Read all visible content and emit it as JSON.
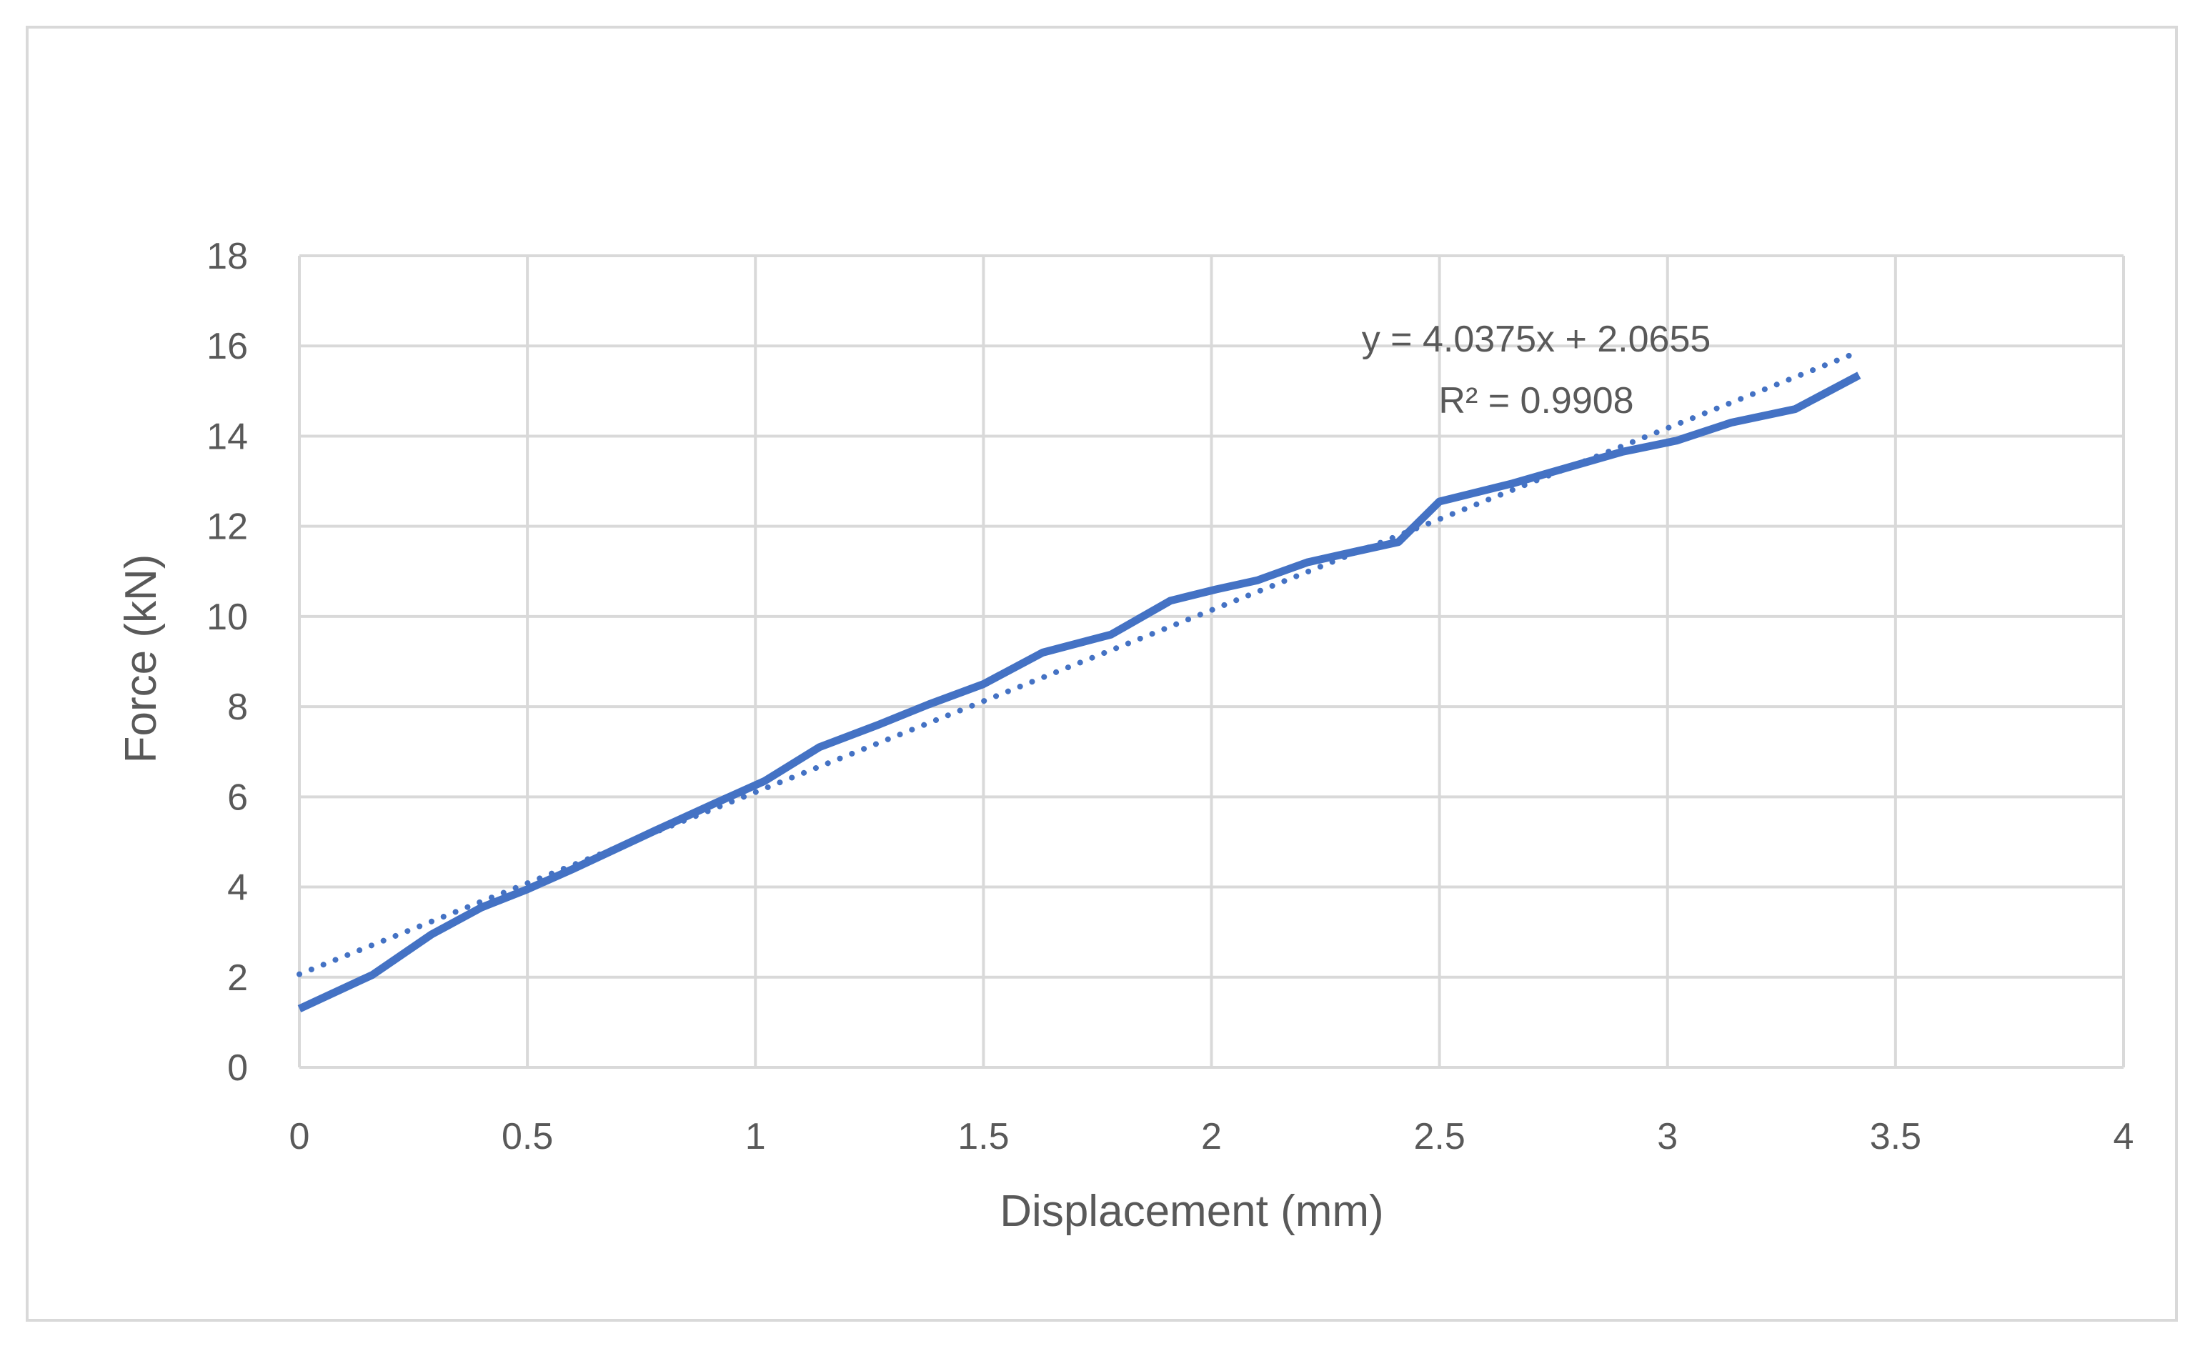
{
  "chart_data": {
    "type": "line",
    "title": "",
    "xlabel": "Displacement (mm)",
    "ylabel": "Force (kN)",
    "xlim": [
      0,
      4
    ],
    "ylim": [
      0,
      18
    ],
    "xticks": [
      0,
      0.5,
      1,
      1.5,
      2,
      2.5,
      3,
      3.5,
      4
    ],
    "xtick_labels": [
      "0",
      "0.5",
      "1",
      "1.5",
      "2",
      "2.5",
      "3",
      "3.5",
      "4"
    ],
    "yticks": [
      0,
      2,
      4,
      6,
      8,
      10,
      12,
      14,
      16,
      18
    ],
    "ytick_labels": [
      "0",
      "2",
      "4",
      "6",
      "8",
      "10",
      "12",
      "14",
      "16",
      "18"
    ],
    "grid": true,
    "legend": "none",
    "series": [
      {
        "color": "#4472C4",
        "x": [
          0,
          0.16,
          0.29,
          0.4,
          0.5,
          0.6,
          0.78,
          0.91,
          1.02,
          1.14,
          1.27,
          1.38,
          1.5,
          1.63,
          1.78,
          1.91,
          2.01,
          2.1,
          2.21,
          2.32,
          2.41,
          2.5,
          2.66,
          2.78,
          2.9,
          3.02,
          3.14,
          3.28,
          3.42
        ],
        "y": [
          1.3,
          2.05,
          2.95,
          3.55,
          3.95,
          4.4,
          5.25,
          5.85,
          6.35,
          7.1,
          7.6,
          8.05,
          8.5,
          9.2,
          9.6,
          10.35,
          10.6,
          10.8,
          11.2,
          11.45,
          11.65,
          12.55,
          12.95,
          13.3,
          13.65,
          13.9,
          14.3,
          14.6,
          15.35
        ]
      }
    ],
    "trendline": {
      "type": "linear",
      "style": "dotted",
      "color": "#4472C4",
      "slope": 4.0375,
      "intercept": 2.0655,
      "x_range": [
        0,
        3.42
      ],
      "equation_label": "y = 4.0375x + 2.0655",
      "r2_label": "R² = 0.9908"
    }
  }
}
